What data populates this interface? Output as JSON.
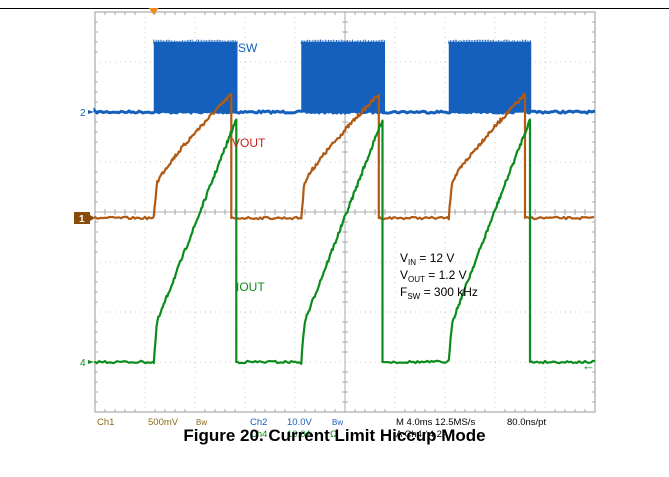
{
  "chart_data": {
    "type": "line",
    "title": "Figure 20. Current Limit Hiccup Mode",
    "x_unit": "ms",
    "xlim": [
      0,
      40
    ],
    "y_divisions": [
      -4,
      4
    ],
    "grid": true,
    "channels": [
      {
        "name": "SW",
        "marker": "2",
        "color": "#1560bd",
        "scale": "10.0V/div",
        "baseline_div": 2.0,
        "high_level_div": 3.4,
        "bursts": [
          [
            4.7,
            11.4
          ],
          [
            16.5,
            23.2
          ],
          [
            28.3,
            34.9
          ]
        ]
      },
      {
        "name": "VOUT",
        "marker": "1",
        "color": "#b05a13",
        "scale": "500mV/div",
        "baseline_div": -0.12,
        "ramps": [
          {
            "start": 4.7,
            "end": 10.9,
            "jump": 0.7,
            "peak": 2.35
          },
          {
            "start": 16.5,
            "end": 22.7,
            "jump": 0.7,
            "peak": 2.35
          },
          {
            "start": 28.3,
            "end": 34.4,
            "jump": 0.7,
            "peak": 2.35
          }
        ]
      },
      {
        "name": "IOUT",
        "marker": "4",
        "color": "#0c8c1c",
        "scale": "10.0A/div",
        "baseline_div": -3.0,
        "ramps": [
          {
            "start": 4.7,
            "end": 11.3,
            "jump": 0.8,
            "peak": 1.85
          },
          {
            "start": 16.5,
            "end": 23.0,
            "jump": 0.8,
            "peak": 1.85
          },
          {
            "start": 28.3,
            "end": 34.8,
            "jump": 0.8,
            "peak": 1.85
          }
        ]
      }
    ],
    "annotation_lines": [
      {
        "main": "V",
        "sub": "IN",
        "rest": " = 12 V"
      },
      {
        "main": "V",
        "sub": "OUT",
        "rest": " = 1.2 V"
      },
      {
        "main": "F",
        "sub": "SW",
        "rest": " = 300 kHz"
      }
    ],
    "readout": {
      "row1": [
        "Ch1",
        "500mV",
        "Bw",
        "Ch2",
        "10.0V",
        "Bw",
        "M 4.0ms 12.5MS/s",
        "80.0ns/pt"
      ],
      "row2": [
        "Ch4",
        "10.0A",
        "Ω",
        "A  Ch4  ∕  4.2A"
      ]
    },
    "markers": {
      "ch2": "2",
      "ch1": "1",
      "ch4": "4",
      "trigger_arrow": "←"
    },
    "colors": {
      "sw": "#1560bd",
      "vout": "#b05a13",
      "iout": "#0c8c1c",
      "trigger": "#f08c1e",
      "text": "#8a6a12",
      "grid": "#9a9a9a"
    }
  }
}
